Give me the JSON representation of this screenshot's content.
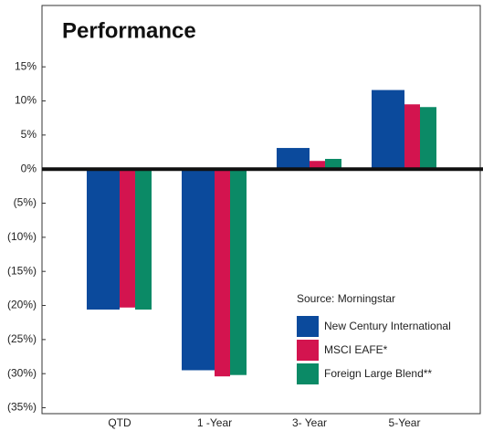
{
  "chart_data": {
    "type": "bar",
    "title": "Performance",
    "categories": [
      "QTD",
      "1 -Year",
      "3- Year",
      "5-Year"
    ],
    "series": [
      {
        "name": "New Century International",
        "color": "#0b4a9c",
        "values": [
          -20.6,
          -29.5,
          3.1,
          11.6
        ]
      },
      {
        "name": "MSCI EAFE*",
        "color": "#d3144f",
        "values": [
          -20.3,
          -30.4,
          1.2,
          9.5
        ]
      },
      {
        "name": "Foreign Large Blend**",
        "color": "#0b8a66",
        "values": [
          -20.6,
          -30.2,
          1.5,
          9.1
        ]
      }
    ],
    "source": "Source: Morningstar",
    "ylim": [
      -36,
      24
    ],
    "yticks": [
      {
        "value": 15,
        "label": "15%"
      },
      {
        "value": 10,
        "label": "10%"
      },
      {
        "value": 5,
        "label": "5%"
      },
      {
        "value": 0,
        "label": "0%"
      },
      {
        "value": -5,
        "label": "(5%)"
      },
      {
        "value": -10,
        "label": "(10%)"
      },
      {
        "value": -15,
        "label": "(15%)"
      },
      {
        "value": -20,
        "label": "(20%)"
      },
      {
        "value": -25,
        "label": "(25%)"
      },
      {
        "value": -30,
        "label": "(30%)"
      },
      {
        "value": -35,
        "label": "(35%)"
      }
    ],
    "grid": false,
    "legend": "lower right"
  }
}
